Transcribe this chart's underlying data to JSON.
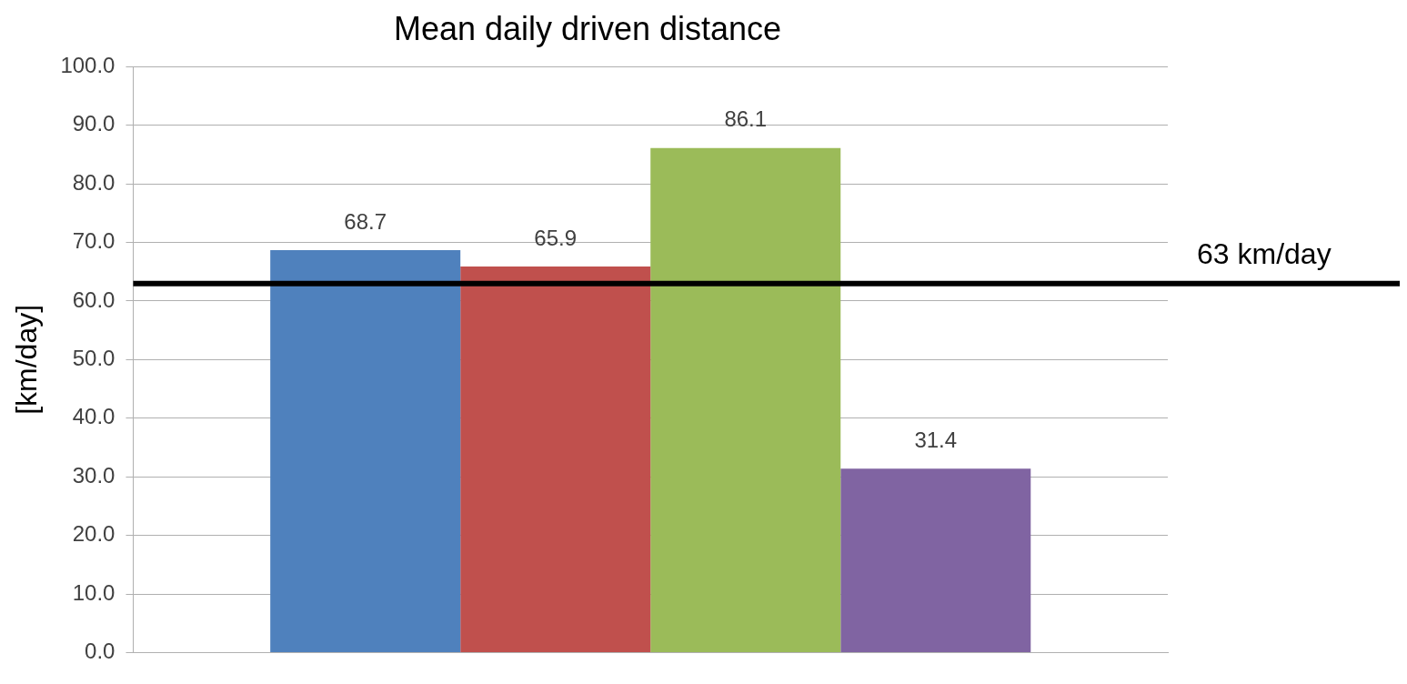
{
  "chart_data": {
    "type": "bar",
    "title": "Mean daily driven distance",
    "ylabel": "[km/day]",
    "categories": [
      null
    ],
    "series": [
      {
        "color": "#4f81bd",
        "values": [
          68.7
        ]
      },
      {
        "color": "#c0504d",
        "values": [
          65.9
        ]
      },
      {
        "color": "#9bbb59",
        "values": [
          86.1
        ]
      },
      {
        "color": "#8064a2",
        "values": [
          31.4
        ]
      }
    ],
    "ylim": [
      0,
      100
    ],
    "yticks": [
      {
        "value": 0,
        "label": "0.0"
      },
      {
        "value": 10,
        "label": "10.0"
      },
      {
        "value": 20,
        "label": "20.0"
      },
      {
        "value": 30,
        "label": "30.0"
      },
      {
        "value": 40,
        "label": "40.0"
      },
      {
        "value": 50,
        "label": "50.0"
      },
      {
        "value": 60,
        "label": "60.0"
      },
      {
        "value": 70,
        "label": "70.0"
      },
      {
        "value": 80,
        "label": "80.0"
      },
      {
        "value": 90,
        "label": "90.0"
      },
      {
        "value": 100,
        "label": "100.0"
      }
    ],
    "grid": "y",
    "data_labels": true,
    "ref_lines": [
      {
        "axis": "y",
        "value": 63,
        "label": "63 km/day",
        "color": "#000000"
      }
    ]
  }
}
